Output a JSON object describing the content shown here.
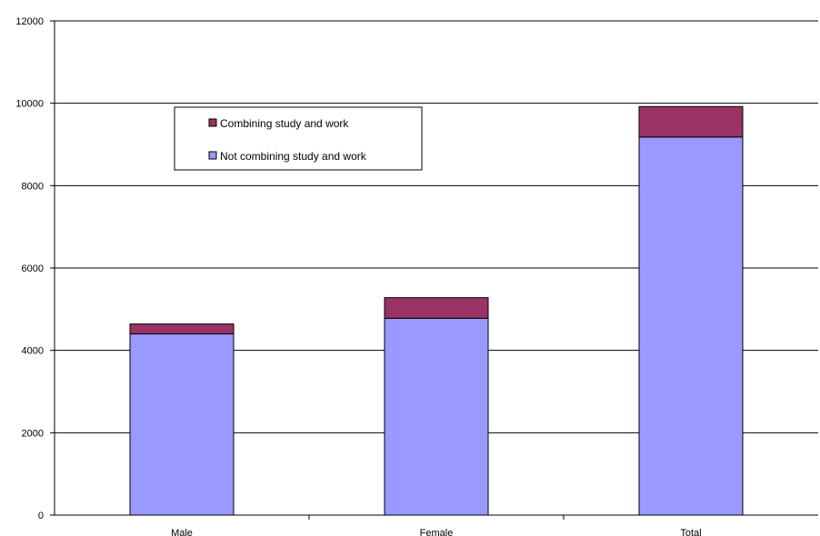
{
  "chart_data": {
    "type": "bar",
    "stacked": true,
    "categories": [
      "Male",
      "Female",
      "Total"
    ],
    "series": [
      {
        "name": "Not combining study and work",
        "values": [
          4400,
          4780,
          9180
        ],
        "color": "#9999ff"
      },
      {
        "name": "Combining study and work",
        "values": [
          240,
          500,
          740
        ],
        "color": "#993366"
      }
    ],
    "y_ticks": [
      0,
      2000,
      4000,
      6000,
      8000,
      10000,
      12000
    ],
    "y_tick_labels": [
      "0",
      "2000",
      "4000",
      "6000",
      "8000",
      "10000",
      "12000"
    ],
    "ylim": [
      0,
      12000
    ],
    "grid": true,
    "legend": {
      "placement": "top-left",
      "entries": [
        "Combining study and work",
        "Not combining study and work"
      ]
    }
  }
}
